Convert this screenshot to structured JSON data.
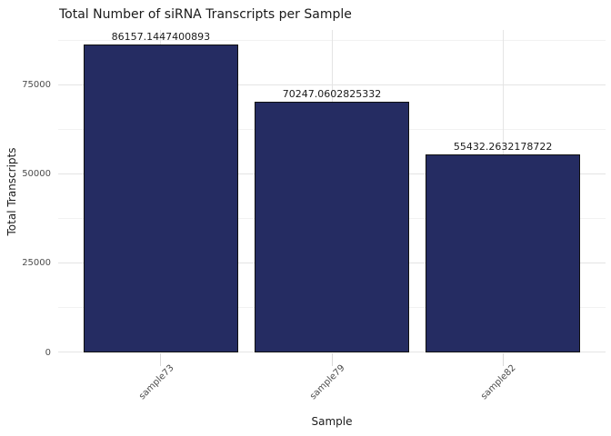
{
  "chart_data": {
    "type": "bar",
    "title": "Total Number of siRNA Transcripts per Sample",
    "xlabel": "Sample",
    "ylabel": "Total Transcripts",
    "categories": [
      "sample73",
      "sample79",
      "sample82"
    ],
    "values": [
      86157.1447400893,
      70247.0602825332,
      55432.2632178722
    ],
    "bar_labels": [
      "86157.1447400893",
      "70247.0602825332",
      "55432.2632178722"
    ],
    "ylim": [
      0,
      90300
    ],
    "yticks": [
      0,
      25000,
      50000,
      75000
    ],
    "ytick_labels": [
      "0",
      "25000",
      "50000",
      "75000"
    ],
    "yticks_minor": [
      12500,
      37500,
      62500,
      87500
    ],
    "x_tick_rotation": 45,
    "grid": "on",
    "legend_position": "none",
    "colors": {
      "bar_fill": "#252c62",
      "bar_edge": "#101010",
      "grid_major": "#e4e4e4",
      "grid_minor": "#f2f2f2",
      "tick_text": "#4d4d4d",
      "title_text": "#1a1a1a",
      "background": "#ffffff"
    }
  }
}
